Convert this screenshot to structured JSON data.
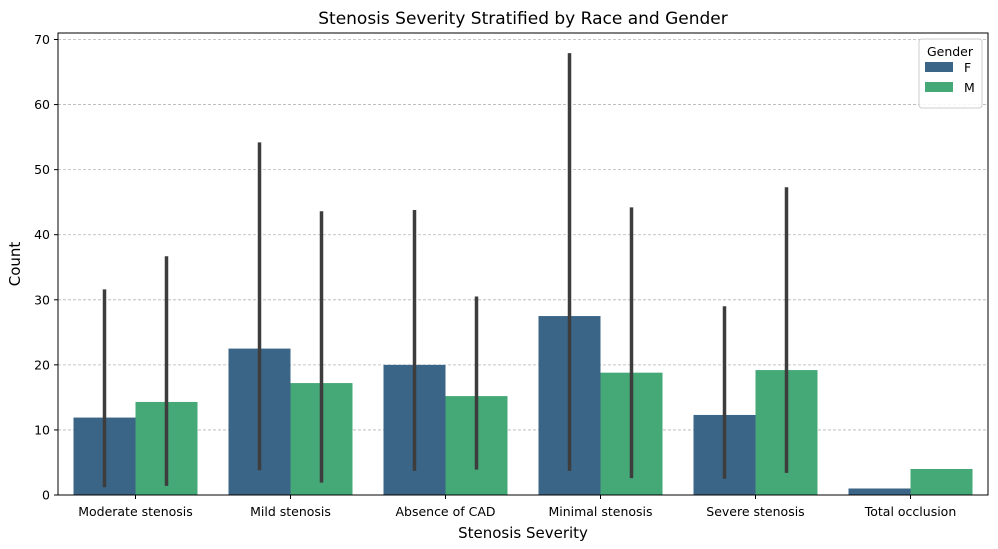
{
  "chart_data": {
    "type": "bar",
    "title": "Stenosis Severity Stratified by Race and Gender",
    "xlabel": "Stenosis Severity",
    "ylabel": "Count",
    "ylim": [
      0,
      71
    ],
    "yticks": [
      0,
      10,
      20,
      30,
      40,
      50,
      60,
      70
    ],
    "grid": "y-dashed",
    "categories": [
      "Moderate stenosis",
      "Mild stenosis",
      "Absence of CAD",
      "Minimal stenosis",
      "Severe stenosis",
      "Total occlusion"
    ],
    "legend": {
      "title": "Gender",
      "placement": "top-right"
    },
    "series": [
      {
        "name": "F",
        "color": "#3b6586",
        "values": [
          11.9,
          22.5,
          20.0,
          27.5,
          12.3,
          1.0
        ],
        "error_low": [
          1.2,
          3.8,
          3.7,
          3.7,
          2.5,
          null
        ],
        "error_high": [
          31.6,
          54.2,
          43.8,
          67.9,
          29.0,
          null
        ]
      },
      {
        "name": "M",
        "color": "#44a877",
        "values": [
          14.3,
          17.2,
          15.2,
          18.8,
          19.2,
          4.0
        ],
        "error_low": [
          1.4,
          1.9,
          3.9,
          2.6,
          3.4,
          null
        ],
        "error_high": [
          36.7,
          43.6,
          30.5,
          44.2,
          47.3,
          null
        ]
      }
    ]
  }
}
